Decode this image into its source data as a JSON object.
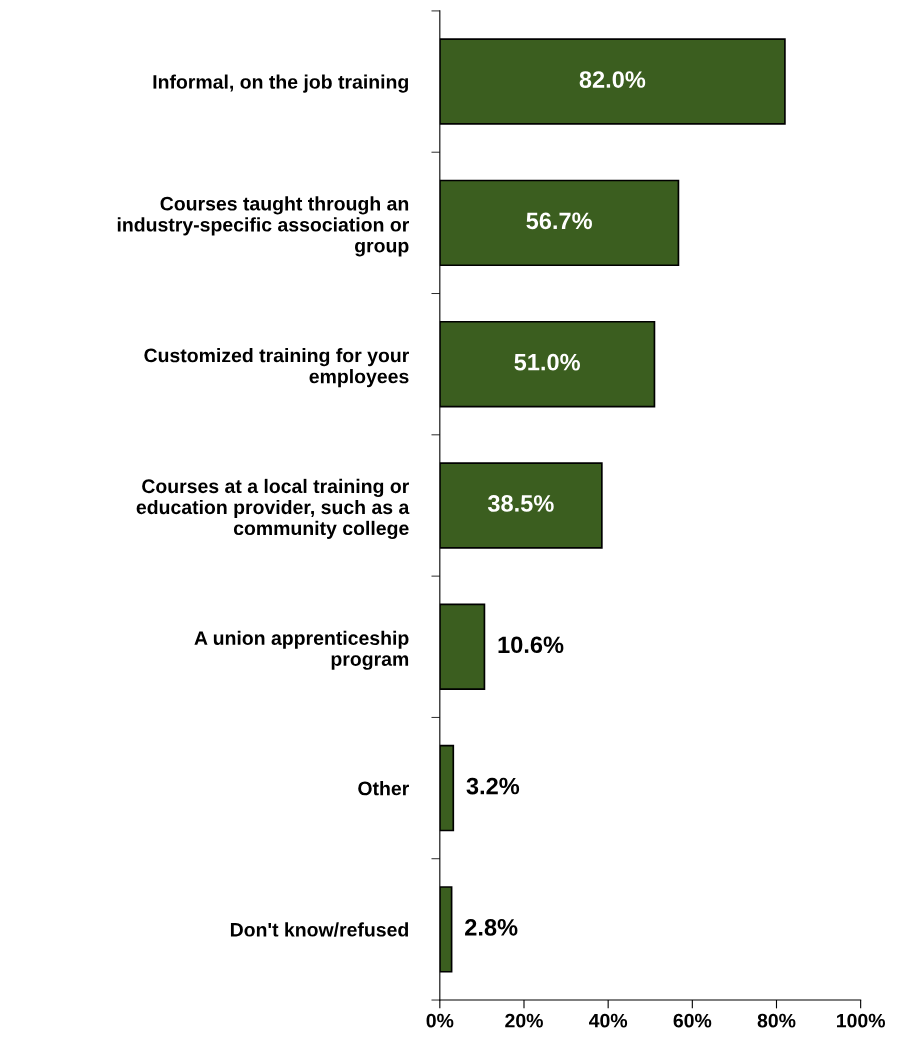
{
  "chart_data": {
    "type": "bar",
    "orientation": "horizontal",
    "categories": [
      "Informal, on the job training",
      "Courses taught through an\nindustry-specific association or\ngroup",
      "Customized training for your\nemployees",
      "Courses at a local training or\neducation provider, such as a\ncommunity college",
      "A union apprenticeship\nprogram",
      "Other",
      "Don't know/refused"
    ],
    "values": [
      82.0,
      56.7,
      51.0,
      38.5,
      10.6,
      3.2,
      2.8
    ],
    "value_labels": [
      "82.0%",
      "56.7%",
      "51.0%",
      "38.5%",
      "10.6%",
      "3.2%",
      "2.8%"
    ],
    "color": "#3b5e1f",
    "xlim": [
      0,
      100
    ],
    "xticks": [
      {
        "value": 0,
        "label": "0%"
      },
      {
        "value": 20,
        "label": "20%"
      },
      {
        "value": 40,
        "label": "40%"
      },
      {
        "value": 60,
        "label": "60%"
      },
      {
        "value": 80,
        "label": "80%"
      },
      {
        "value": 100,
        "label": "100%"
      }
    ],
    "grid": false,
    "legend": false
  }
}
